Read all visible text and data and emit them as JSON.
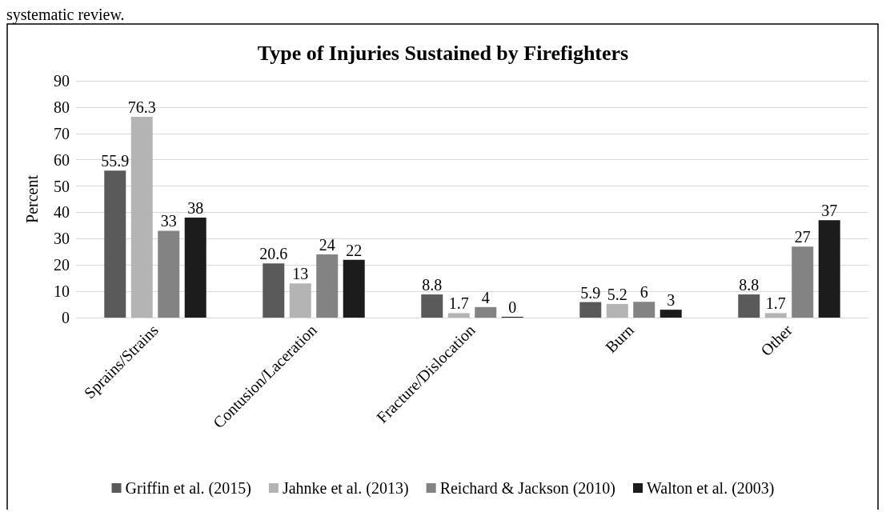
{
  "chart_data": {
    "type": "bar",
    "title": "Type of Injuries Sustained by Firefighters",
    "ylabel": "Percent",
    "annotations": [
      "systematic review."
    ],
    "categories": [
      "Sprains/Strains",
      "Contusion/Laceration",
      "Fracture/Dislocation",
      "Burn",
      "Other"
    ],
    "series": [
      {
        "name": "Griffin et al. (2015)",
        "color": "#5a5a5a",
        "values": [
          55.9,
          20.6,
          8.8,
          5.9,
          8.8
        ]
      },
      {
        "name": "Jahnke et al. (2013)",
        "color": "#b4b4b4",
        "values": [
          76.3,
          13,
          1.7,
          5.2,
          1.7
        ]
      },
      {
        "name": "Reichard & Jackson (2010)",
        "color": "#838383",
        "values": [
          33,
          24,
          4,
          6,
          27
        ]
      },
      {
        "name": "Walton et al. (2003)",
        "color": "#1c1c1c",
        "values": [
          38,
          22,
          0,
          3,
          37
        ]
      }
    ],
    "ylim": [
      0,
      90
    ],
    "yticks": [
      0,
      10,
      20,
      30,
      40,
      50,
      60,
      70,
      80,
      90
    ],
    "grid": "y",
    "legend": "bottom",
    "data_labels": true
  }
}
